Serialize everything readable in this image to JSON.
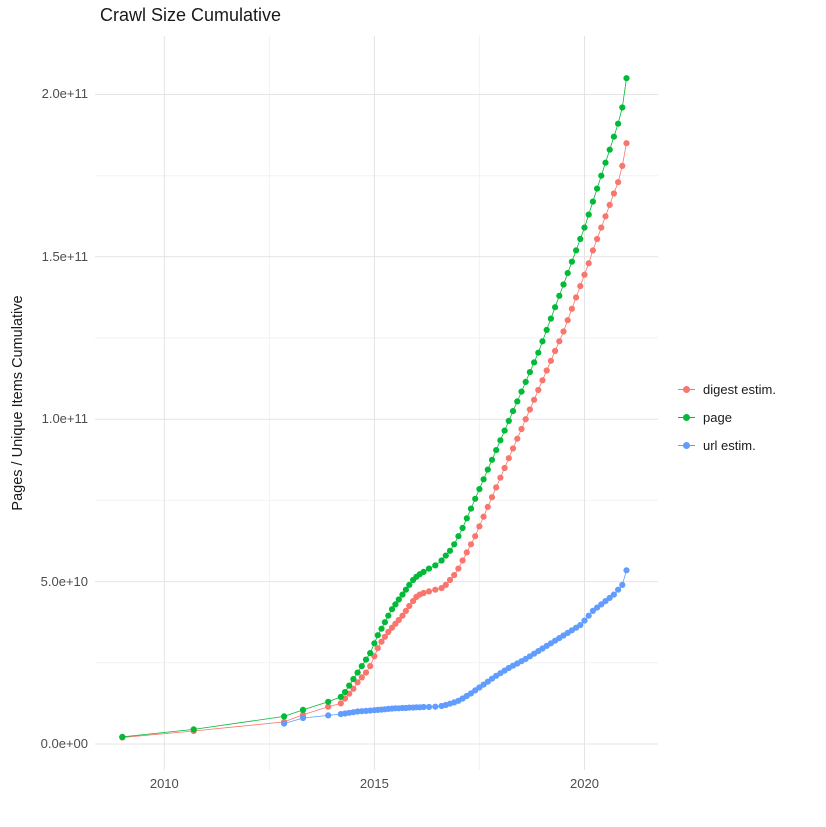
{
  "chart_data": {
    "type": "scatter",
    "title": "Crawl Size Cumulative",
    "xlabel": "",
    "ylabel": "Pages / Unique Items Cumulative",
    "xlim": [
      2008.35,
      2021.75
    ],
    "ylim": [
      -8000000000.0,
      218000000000.0
    ],
    "x_ticks": [
      2010,
      2015,
      2020
    ],
    "x_tick_labels": [
      "2010",
      "2015",
      "2020"
    ],
    "x_minor": [
      2012.5,
      2017.5
    ],
    "y_ticks": [
      0,
      50000000000.0,
      100000000000.0,
      150000000000.0,
      200000000000.0
    ],
    "y_tick_labels": [
      "0.0e+00",
      "5.0e+10",
      "1.0e+11",
      "1.5e+11",
      "2.0e+11"
    ],
    "y_minor": [
      25000000000.0,
      75000000000.0,
      125000000000.0,
      175000000000.0
    ],
    "grid": true,
    "background": "#ffffff",
    "gridline_major_color": "#e4e4e4",
    "gridline_minor_color": "#f2f2f2",
    "legend_position": "right",
    "series": [
      {
        "name": "digest estim.",
        "color": "#F8766D",
        "x": [
          2009.0,
          2010.7,
          2012.85,
          2013.3,
          2013.9,
          2014.2,
          2014.3,
          2014.4,
          2014.5,
          2014.6,
          2014.7,
          2014.8,
          2014.9,
          2015.0,
          2015.08,
          2015.17,
          2015.25,
          2015.33,
          2015.42,
          2015.5,
          2015.58,
          2015.67,
          2015.75,
          2015.83,
          2015.92,
          2016.0,
          2016.08,
          2016.17,
          2016.3,
          2016.45,
          2016.6,
          2016.7,
          2016.8,
          2016.9,
          2017.0,
          2017.1,
          2017.2,
          2017.3,
          2017.4,
          2017.5,
          2017.6,
          2017.7,
          2017.8,
          2017.9,
          2018.0,
          2018.1,
          2018.2,
          2018.3,
          2018.4,
          2018.5,
          2018.6,
          2018.7,
          2018.8,
          2018.9,
          2019.0,
          2019.1,
          2019.2,
          2019.3,
          2019.4,
          2019.5,
          2019.6,
          2019.7,
          2019.8,
          2019.9,
          2020.0,
          2020.1,
          2020.2,
          2020.3,
          2020.4,
          2020.5,
          2020.6,
          2020.7,
          2020.8,
          2020.9,
          2021.0
        ],
        "y": [
          2000000000.0,
          4000000000.0,
          6800000000.0,
          9000000000.0,
          11500000000.0,
          12500000000.0,
          14000000000.0,
          15500000000.0,
          17000000000.0,
          19000000000.0,
          20500000000.0,
          22000000000.0,
          24000000000.0,
          27000000000.0,
          29500000000.0,
          31500000000.0,
          33000000000.0,
          34500000000.0,
          35800000000.0,
          37000000000.0,
          38200000000.0,
          39500000000.0,
          41000000000.0,
          42500000000.0,
          44000000000.0,
          45300000000.0,
          46000000000.0,
          46500000000.0,
          47000000000.0,
          47500000000.0,
          48000000000.0,
          49000000000.0,
          50500000000.0,
          52000000000.0,
          54000000000.0,
          56500000000.0,
          59000000000.0,
          61500000000.0,
          64000000000.0,
          67000000000.0,
          70000000000.0,
          73000000000.0,
          76000000000.0,
          79000000000.0,
          82000000000.0,
          85000000000.0,
          88000000000.0,
          91000000000.0,
          94000000000.0,
          97000000000.0,
          100000000000.0,
          103000000000.0,
          106000000000.0,
          109000000000.0,
          112000000000.0,
          115000000000.0,
          118000000000.0,
          121000000000.0,
          124000000000.0,
          127000000000.0,
          130500000000.0,
          134000000000.0,
          137500000000.0,
          141000000000.0,
          144500000000.0,
          148000000000.0,
          152000000000.0,
          155500000000.0,
          159000000000.0,
          162500000000.0,
          166000000000.0,
          169500000000.0,
          173000000000.0,
          178000000000.0,
          185000000000.0
        ]
      },
      {
        "name": "page",
        "color": "#00BA38",
        "x": [
          2009.0,
          2010.7,
          2012.85,
          2013.3,
          2013.9,
          2014.2,
          2014.3,
          2014.4,
          2014.5,
          2014.6,
          2014.7,
          2014.8,
          2014.9,
          2015.0,
          2015.08,
          2015.17,
          2015.25,
          2015.33,
          2015.42,
          2015.5,
          2015.58,
          2015.67,
          2015.75,
          2015.83,
          2015.92,
          2016.0,
          2016.08,
          2016.17,
          2016.3,
          2016.45,
          2016.6,
          2016.7,
          2016.8,
          2016.9,
          2017.0,
          2017.1,
          2017.2,
          2017.3,
          2017.4,
          2017.5,
          2017.6,
          2017.7,
          2017.8,
          2017.9,
          2018.0,
          2018.1,
          2018.2,
          2018.3,
          2018.4,
          2018.5,
          2018.6,
          2018.7,
          2018.8,
          2018.9,
          2019.0,
          2019.1,
          2019.2,
          2019.3,
          2019.4,
          2019.5,
          2019.6,
          2019.7,
          2019.8,
          2019.9,
          2020.0,
          2020.1,
          2020.2,
          2020.3,
          2020.4,
          2020.5,
          2020.6,
          2020.7,
          2020.8,
          2020.9,
          2021.0
        ],
        "y": [
          2200000000.0,
          4500000000.0,
          8500000000.0,
          10500000000.0,
          13000000000.0,
          14500000000.0,
          16000000000.0,
          18000000000.0,
          20000000000.0,
          22000000000.0,
          24000000000.0,
          26000000000.0,
          28000000000.0,
          31000000000.0,
          33500000000.0,
          35500000000.0,
          37500000000.0,
          39500000000.0,
          41500000000.0,
          43000000000.0,
          44500000000.0,
          46000000000.0,
          47500000000.0,
          49000000000.0,
          50500000000.0,
          51500000000.0,
          52300000000.0,
          53000000000.0,
          54000000000.0,
          55000000000.0,
          56500000000.0,
          58000000000.0,
          59500000000.0,
          61500000000.0,
          64000000000.0,
          66500000000.0,
          69500000000.0,
          72500000000.0,
          75500000000.0,
          78500000000.0,
          81500000000.0,
          84500000000.0,
          87500000000.0,
          90500000000.0,
          93500000000.0,
          96500000000.0,
          99500000000.0,
          102500000000.0,
          105500000000.0,
          108500000000.0,
          111500000000.0,
          114500000000.0,
          117500000000.0,
          120500000000.0,
          124000000000.0,
          127500000000.0,
          131000000000.0,
          134500000000.0,
          138000000000.0,
          141500000000.0,
          145000000000.0,
          148500000000.0,
          152000000000.0,
          155500000000.0,
          159000000000.0,
          163000000000.0,
          167000000000.0,
          171000000000.0,
          175000000000.0,
          179000000000.0,
          183000000000.0,
          187000000000.0,
          191000000000.0,
          196000000000.0,
          205000000000.0
        ]
      },
      {
        "name": "url estim.",
        "color": "#619CFF",
        "x": [
          2012.85,
          2013.3,
          2013.9,
          2014.2,
          2014.3,
          2014.4,
          2014.5,
          2014.6,
          2014.7,
          2014.8,
          2014.9,
          2015.0,
          2015.08,
          2015.17,
          2015.25,
          2015.33,
          2015.42,
          2015.5,
          2015.58,
          2015.67,
          2015.75,
          2015.83,
          2015.92,
          2016.0,
          2016.08,
          2016.17,
          2016.3,
          2016.45,
          2016.6,
          2016.7,
          2016.8,
          2016.9,
          2017.0,
          2017.1,
          2017.2,
          2017.3,
          2017.4,
          2017.5,
          2017.6,
          2017.7,
          2017.8,
          2017.9,
          2018.0,
          2018.1,
          2018.2,
          2018.3,
          2018.4,
          2018.5,
          2018.6,
          2018.7,
          2018.8,
          2018.9,
          2019.0,
          2019.1,
          2019.2,
          2019.3,
          2019.4,
          2019.5,
          2019.6,
          2019.7,
          2019.8,
          2019.9,
          2020.0,
          2020.1,
          2020.2,
          2020.3,
          2020.4,
          2020.5,
          2020.6,
          2020.7,
          2020.8,
          2020.9,
          2021.0
        ],
        "y": [
          6300000000.0,
          8000000000.0,
          8800000000.0,
          9200000000.0,
          9400000000.0,
          9600000000.0,
          9800000000.0,
          10000000000.0,
          10100000000.0,
          10200000000.0,
          10300000000.0,
          10400000000.0,
          10500000000.0,
          10600000000.0,
          10700000000.0,
          10800000000.0,
          10900000000.0,
          11000000000.0,
          11000000000.0,
          11100000000.0,
          11100000000.0,
          11200000000.0,
          11200000000.0,
          11300000000.0,
          11300000000.0,
          11400000000.0,
          11400000000.0,
          11500000000.0,
          11700000000.0,
          12000000000.0,
          12400000000.0,
          12800000000.0,
          13300000000.0,
          14000000000.0,
          14800000000.0,
          15600000000.0,
          16500000000.0,
          17400000000.0,
          18300000000.0,
          19200000000.0,
          20100000000.0,
          21000000000.0,
          21800000000.0,
          22600000000.0,
          23400000000.0,
          24100000000.0,
          24800000000.0,
          25500000000.0,
          26200000000.0,
          27000000000.0,
          27800000000.0,
          28600000000.0,
          29400000000.0,
          30200000000.0,
          31000000000.0,
          31800000000.0,
          32600000000.0,
          33400000000.0,
          34200000000.0,
          35000000000.0,
          35800000000.0,
          36600000000.0,
          38000000000.0,
          39500000000.0,
          41000000000.0,
          42000000000.0,
          43000000000.0,
          44000000000.0,
          45000000000.0,
          46000000000.0,
          47500000000.0,
          49000000000.0,
          53500000000.0
        ]
      }
    ]
  }
}
